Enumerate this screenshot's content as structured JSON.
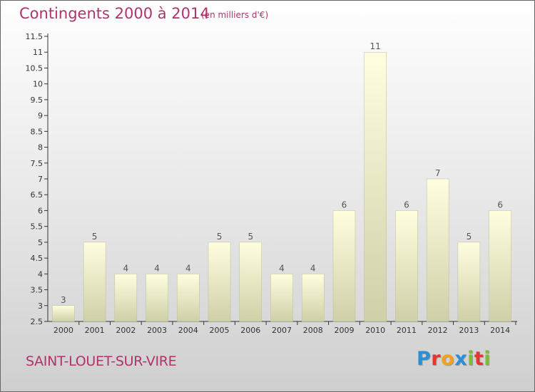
{
  "chart_data": {
    "type": "bar",
    "title": "Contingents 2000 à 2014",
    "subtitle": "(en milliers d'€)",
    "categories": [
      "2000",
      "2001",
      "2002",
      "2003",
      "2004",
      "2005",
      "2006",
      "2007",
      "2008",
      "2009",
      "2010",
      "2011",
      "2012",
      "2013",
      "2014"
    ],
    "values": [
      3,
      5,
      4,
      4,
      4,
      5,
      5,
      4,
      4,
      6,
      11,
      6,
      7,
      5,
      6
    ],
    "ylim": [
      2.5,
      11.5
    ],
    "yticks": [
      "2.5",
      "3",
      "3.5",
      "4",
      "4.5",
      "5",
      "5.5",
      "6",
      "6.5",
      "7",
      "7.5",
      "8",
      "8.5",
      "9",
      "9.5",
      "10",
      "10.5",
      "11",
      "11.5"
    ],
    "grid": false,
    "bar_color_top": "#ffffe0",
    "bar_color_bottom": "#cfcfa8"
  },
  "footer": {
    "commune": "SAINT-LOUET-SUR-VIRE",
    "brand_letters": [
      "P",
      "r",
      "o",
      "x",
      "i",
      "t",
      "i"
    ],
    "brand_colors": [
      "#2b8fd6",
      "#e8342a",
      "#f2a21b",
      "#2b8fd6",
      "#7dbb2f",
      "#e8342a",
      "#7dbb2f"
    ]
  }
}
